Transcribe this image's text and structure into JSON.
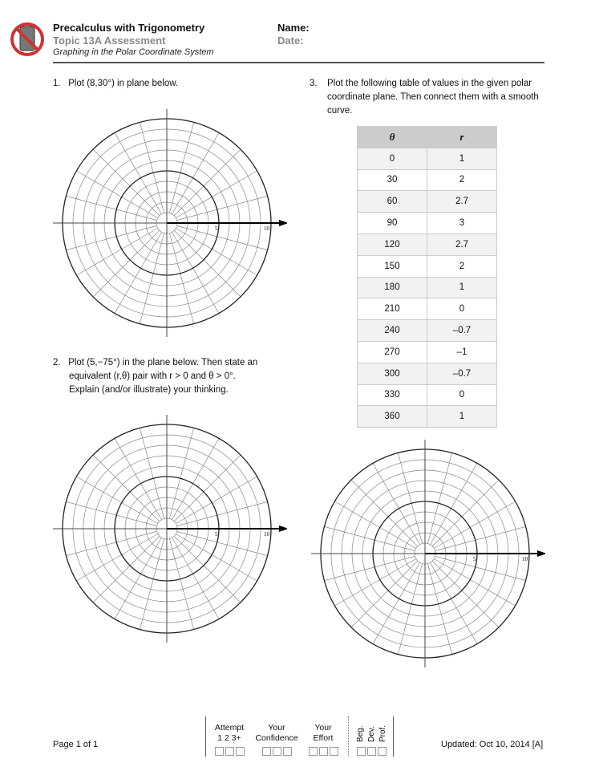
{
  "header": {
    "course": "Precalculus with Trigonometry",
    "topic": "Topic 13A Assessment",
    "subtitle": "Graphing in the Polar Coordinate System",
    "name_label": "Name:",
    "date_label": "Date:",
    "logo_icon": "no-calculator-icon"
  },
  "questions": {
    "q1": {
      "number": "1.",
      "text": "Plot (8,30°) in plane below."
    },
    "q2": {
      "number": "2.",
      "line1": "Plot (5,−75°) in the plane below. Then state an",
      "line2": "equivalent (r,θ) pair with r > 0 and θ > 0°.",
      "line3": "Explain (and/or illustrate) your thinking."
    },
    "q3": {
      "number": "3.",
      "text": "Plot the following table of values in the given polar coordinate plane. Then connect them with a smooth curve."
    }
  },
  "table": {
    "headers": [
      "θ",
      "r"
    ],
    "rows": [
      [
        "0",
        "1"
      ],
      [
        "30",
        "2"
      ],
      [
        "60",
        "2.7"
      ],
      [
        "90",
        "3"
      ],
      [
        "120",
        "2.7"
      ],
      [
        "150",
        "2"
      ],
      [
        "180",
        "1"
      ],
      [
        "210",
        "0"
      ],
      [
        "240",
        "–0.7"
      ],
      [
        "270",
        "–1"
      ],
      [
        "300",
        "–0.7"
      ],
      [
        "330",
        "0"
      ],
      [
        "360",
        "1"
      ]
    ]
  },
  "grid": {
    "label5": "5",
    "label10": "10"
  },
  "footer": {
    "page": "Page 1 of 1",
    "updated": "Updated: Oct 10, 2014 [A]",
    "attempt": "Attempt",
    "attempt_nums": "1  2  3+",
    "confidence1": "Your",
    "confidence2": "Confidence",
    "effort1": "Your",
    "effort2": "Effort",
    "levels": [
      "Beg.",
      "Dev.",
      "Prof."
    ]
  }
}
